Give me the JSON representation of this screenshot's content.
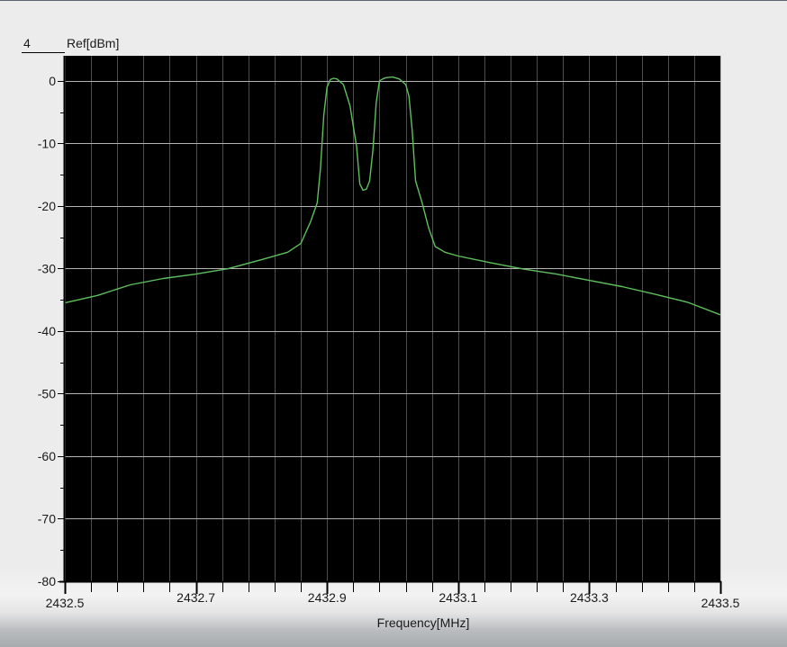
{
  "chart_data": {
    "type": "line",
    "ref_marker": "4",
    "ylabel": "Ref[dBm]",
    "xlabel": "Frequency[MHz]",
    "xlim": [
      2432.5,
      2433.5
    ],
    "ylim": [
      -80,
      4
    ],
    "x_ticks": [
      2432.5,
      2432.7,
      2432.9,
      2433.1,
      2433.3,
      2433.5
    ],
    "x_tick_labels": [
      "2432.5",
      "2432.7",
      "2432.9",
      "2433.1",
      "2433.3",
      "2433.5"
    ],
    "y_ticks": [
      0,
      -10,
      -20,
      -30,
      -40,
      -50,
      -60,
      -70,
      -80
    ],
    "y_tick_labels": [
      "0",
      "-10",
      "-20",
      "-30",
      "-40",
      "-50",
      "-60",
      "-70",
      "-80"
    ],
    "x_minor_step": 0.04,
    "y_minor_step": 5,
    "grid": true,
    "background": "#000000",
    "grid_color": "#8c8c8c",
    "series": [
      {
        "color": "#5fbf5f",
        "x": [
          2432.5,
          2432.55,
          2432.6,
          2432.65,
          2432.7,
          2432.75,
          2432.8,
          2432.84,
          2432.86,
          2432.875,
          2432.885,
          2432.89,
          2432.895,
          2432.9,
          2432.905,
          2432.91,
          2432.915,
          2432.925,
          2432.935,
          2432.945,
          2432.95,
          2432.955,
          2432.96,
          2432.965,
          2432.97,
          2432.975,
          2432.98,
          2432.985,
          2432.99,
          2433.0,
          2433.01,
          2433.02,
          2433.025,
          2433.03,
          2433.035,
          2433.045,
          2433.055,
          2433.065,
          2433.08,
          2433.1,
          2433.15,
          2433.2,
          2433.25,
          2433.3,
          2433.35,
          2433.4,
          2433.45,
          2433.5
        ],
        "y": [
          -35.5,
          -34.3,
          -32.6,
          -31.6,
          -30.9,
          -30.0,
          -28.6,
          -27.4,
          -26.0,
          -22.5,
          -19.5,
          -14.0,
          -5.5,
          -1.0,
          0.2,
          0.4,
          0.3,
          -0.6,
          -4.0,
          -10.5,
          -16.5,
          -17.5,
          -17.3,
          -16.0,
          -11.0,
          -3.5,
          0.0,
          0.3,
          0.5,
          0.6,
          0.3,
          -0.6,
          -2.5,
          -8.0,
          -16.0,
          -19.5,
          -23.5,
          -26.5,
          -27.4,
          -28.0,
          -29.1,
          -30.1,
          -30.9,
          -31.9,
          -32.9,
          -34.1,
          -35.4,
          -37.4
        ]
      }
    ]
  }
}
